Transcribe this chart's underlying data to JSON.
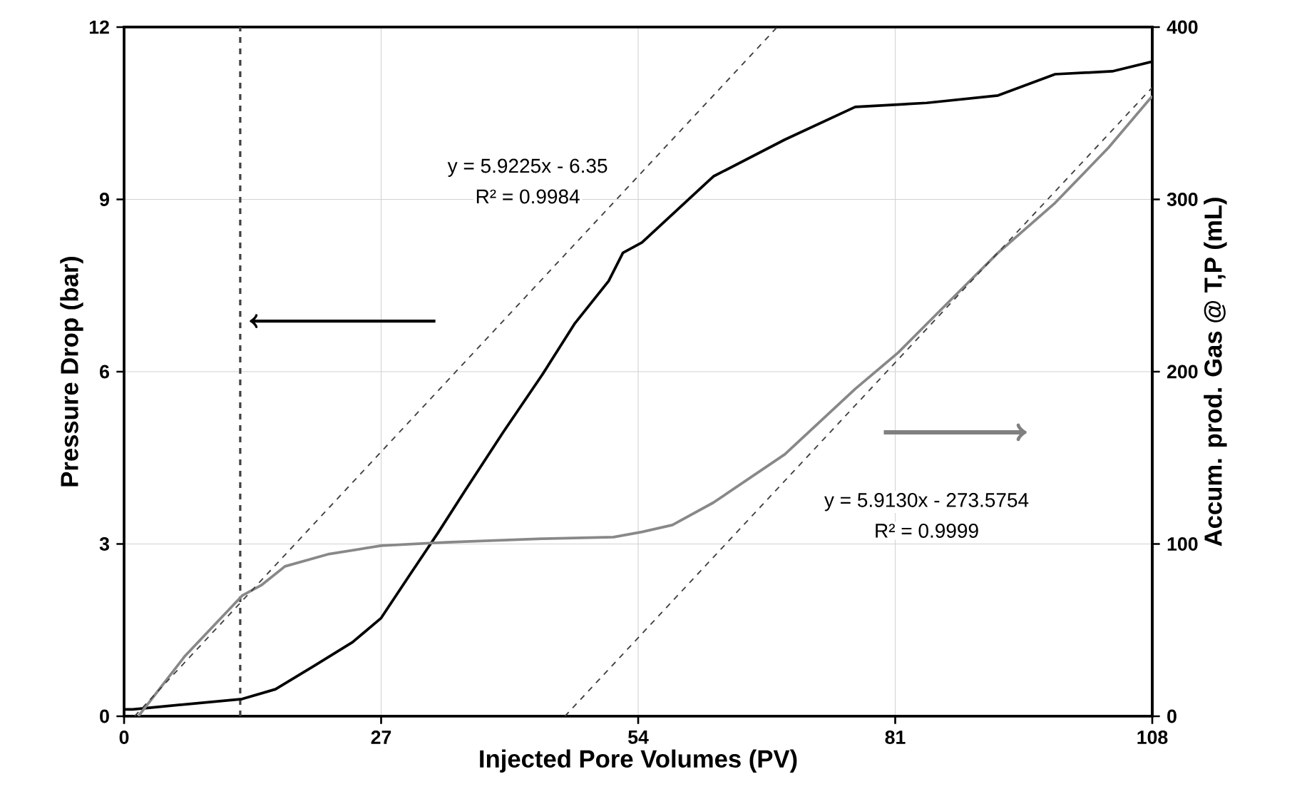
{
  "chart_data": {
    "type": "line",
    "xlabel": "Injected Pore Volumes (PV)",
    "ylabel": "Pressure Drop (bar)",
    "y2label": "Accum. prod. Gas @ T,P (mL)",
    "annotations": [
      "y = 5.9225x - 6.35",
      "R² = 0.9984",
      "y = 5.9130x - 273.5754",
      "R² = 0.9999"
    ],
    "xlim": [
      0,
      108
    ],
    "xticks": [
      0,
      27,
      54,
      81,
      108
    ],
    "ylim": [
      0,
      12
    ],
    "yticks": [
      0,
      3,
      6,
      9,
      12
    ],
    "y2lim": [
      0,
      400
    ],
    "y2ticks": [
      0,
      100,
      200,
      300,
      400
    ],
    "grid": true,
    "marker": "none",
    "ref_lines": [
      {
        "axis": "x",
        "value": 12.2,
        "color": "#404040",
        "line_style": "dashed"
      }
    ],
    "series": [
      {
        "color": "#000000",
        "x": [
          0,
          0.9,
          12.4,
          15.9,
          19.9,
          24.0,
          27.0,
          30.0,
          33.0,
          35.9,
          39.8,
          43.9,
          47.3,
          50.9,
          52.4,
          54.4,
          61.9,
          69.4,
          76.8,
          84.3,
          91.8,
          97.8,
          103.8,
          108
        ],
        "values": [
          0.12,
          0.12,
          0.3,
          0.47,
          0.87,
          1.29,
          1.71,
          2.46,
          3.2,
          3.95,
          4.94,
          5.94,
          6.83,
          7.58,
          8.07,
          8.25,
          9.4,
          10.04,
          10.61,
          10.68,
          10.81,
          11.18,
          11.23,
          11.4
        ]
      },
      {
        "color": "#888888",
        "axis": "y2",
        "x": [
          1.5,
          6.4,
          12.4,
          14.4,
          16.9,
          21.4,
          27,
          33.9,
          43.9,
          51.4,
          54.4,
          57.6,
          61.9,
          69.4,
          76.8,
          81.3,
          86.9,
          91.8,
          97.8,
          103.4,
          108
        ],
        "values": [
          0,
          35,
          70,
          76,
          87,
          94,
          99,
          101,
          103,
          104,
          107,
          111,
          124,
          152,
          190,
          211,
          242,
          269,
          298,
          330,
          360
        ]
      },
      {
        "type": "line",
        "color": "#404040",
        "axis": "y2",
        "line_style": "dashed",
        "x": [
          1.1,
          68.6
        ],
        "values": [
          0,
          400
        ]
      },
      {
        "type": "line",
        "color": "#404040",
        "axis": "y2",
        "line_style": "dashed",
        "x": [
          46.3,
          108
        ],
        "values": [
          0,
          365
        ]
      }
    ]
  }
}
